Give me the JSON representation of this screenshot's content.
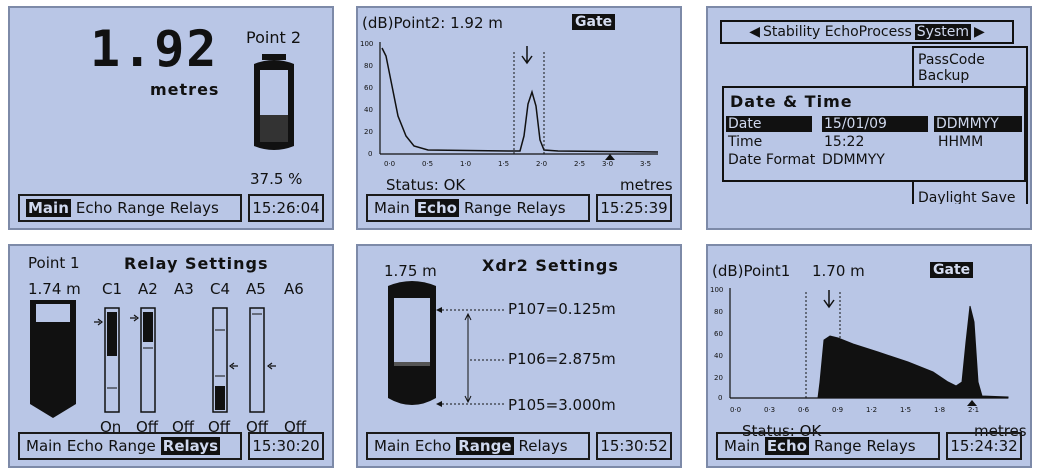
{
  "menu": {
    "items": [
      "Main",
      "Echo",
      "Range",
      "Relays"
    ]
  },
  "p1": {
    "reading": "1.92",
    "unit": "metres",
    "point": "Point 2",
    "percent": "37.5 %",
    "fill": 0.375,
    "selected": "Main",
    "clock": "15:26:04"
  },
  "p2": {
    "title": "(dB)Point2: 1.92 m",
    "gate": "Gate",
    "status": "Status: OK",
    "xunit": "metres",
    "selected": "Echo",
    "clock": "15:25:39",
    "yticks": [
      "100",
      "80",
      "60",
      "40",
      "20",
      "0"
    ],
    "xticks": [
      "0·0",
      "0·5",
      "1·0",
      "1·5",
      "2·0",
      "2·5",
      "3·0",
      "3·5"
    ]
  },
  "p3": {
    "tabs": "Stability EchoProcess",
    "tab_sel": "System",
    "left_arrow": "◀",
    "right_arrow": "▶",
    "list_items": [
      "PassCode",
      "Backup",
      "Daylight Save"
    ],
    "dialog_title": "Date & Time",
    "rows": [
      {
        "label": "Date",
        "value": "15/01/09",
        "format": "DDMMYY"
      },
      {
        "label": "Time",
        "value": "15:22",
        "format": "HHMM"
      },
      {
        "label": "Date Format",
        "value": "DDMMYY",
        "format": ""
      }
    ]
  },
  "p4": {
    "point": "Point 1",
    "title": "Relay Settings",
    "level": "1.74 m",
    "selected": "Relays",
    "clock": "15:30:20",
    "relays": [
      {
        "name": "C1",
        "state": "On"
      },
      {
        "name": "A2",
        "state": "Off"
      },
      {
        "name": "A3",
        "state": "Off"
      },
      {
        "name": "C4",
        "state": "Off"
      },
      {
        "name": "A5",
        "state": "Off"
      },
      {
        "name": "A6",
        "state": "Off"
      }
    ]
  },
  "p5": {
    "level": "1.75 m",
    "title": "Xdr2 Settings",
    "p107": "P107=0.125m",
    "p106": "P106=2.875m",
    "p105": "P105=3.000m",
    "selected": "Range",
    "clock": "15:30:52"
  },
  "p6": {
    "title": "(dB)Point1",
    "level": "1.70 m",
    "gate": "Gate",
    "status": "Status: OK",
    "xunit": "metres",
    "selected": "Echo",
    "clock": "15:24:32",
    "yticks": [
      "100",
      "80",
      "60",
      "40",
      "20",
      "0"
    ],
    "xticks": [
      "0·0",
      "0·3",
      "0·6",
      "0·9",
      "1·2",
      "1·5",
      "1·8",
      "2·1"
    ]
  }
}
